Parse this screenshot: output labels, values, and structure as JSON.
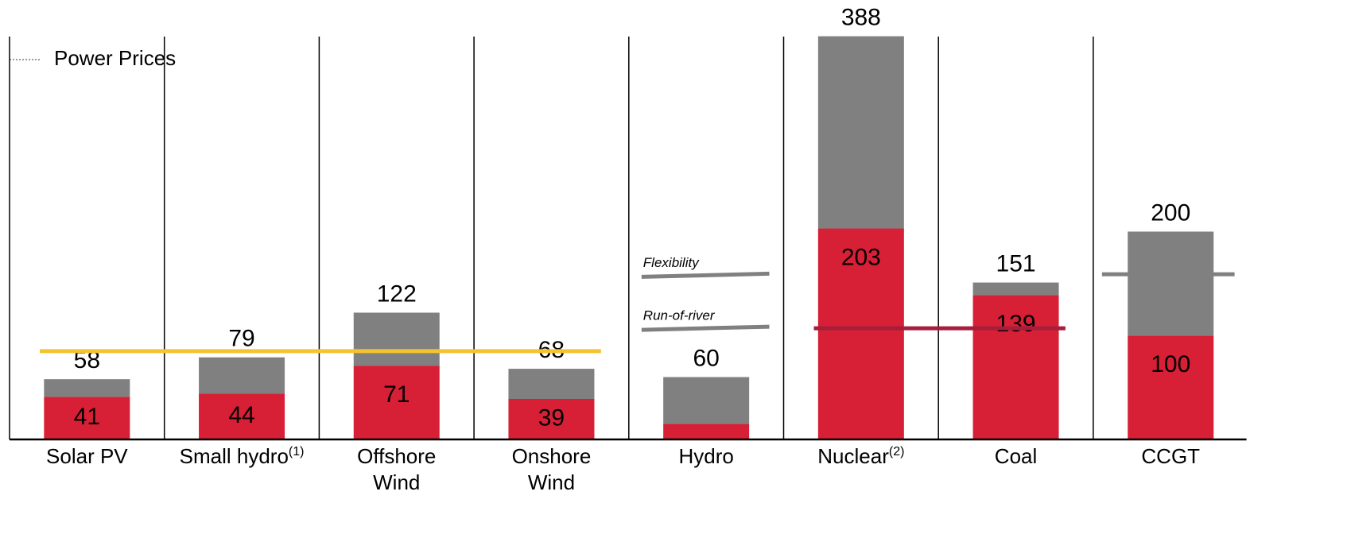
{
  "chart_data": {
    "type": "stacked_bar",
    "categories": [
      "Solar PV",
      "Small hydro",
      "Offshore\nWind",
      "Onshore\nWind",
      "Hydro",
      "Nuclear",
      "Coal",
      "CCGT"
    ],
    "category_notes": [
      null,
      "(1)",
      null,
      null,
      null,
      "(2)",
      null,
      null
    ],
    "series": [
      {
        "name": "Lower",
        "color": "#d71f35",
        "values": [
          41,
          44,
          71,
          39,
          15,
          203,
          139,
          100
        ]
      },
      {
        "name": "Upper",
        "color": "#808080",
        "values": [
          17,
          35,
          51,
          29,
          45,
          185,
          12,
          100
        ]
      }
    ],
    "totals": [
      58,
      79,
      122,
      68,
      60,
      388,
      151,
      200
    ],
    "ylim": [
      0,
      390
    ],
    "legend": {
      "label": "Power Prices",
      "color": "#999999"
    },
    "price_lines": [
      {
        "value": 85,
        "color": "#f5c330",
        "span": [
          0,
          3
        ]
      },
      {
        "value": 158,
        "color": "#808080",
        "span": [
          4,
          4
        ],
        "label": "Flexibility"
      },
      {
        "value": 107,
        "color": "#808080",
        "span": [
          4,
          4
        ],
        "label": "Run-of-river"
      },
      {
        "value": 107,
        "color": "#a51f3c",
        "span": [
          5,
          6
        ]
      },
      {
        "value": 159,
        "color": "#808080",
        "span": [
          7,
          7
        ]
      }
    ]
  }
}
